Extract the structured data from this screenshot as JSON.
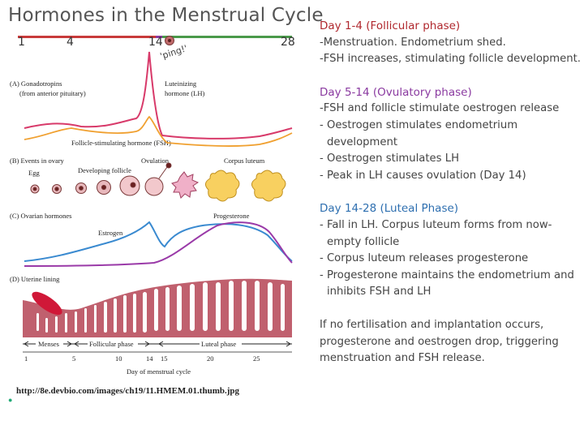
{
  "title": "Hormones in the Menstrual Cycle",
  "day_markers": [
    "1",
    "4",
    "14",
    "28"
  ],
  "ping_label": "'ping!'",
  "diagram": {
    "panel_a_label": "(A) Gonadotropins",
    "panel_a_sub": "(from anterior pituitary)",
    "lh_label_1": "Luteinizing",
    "lh_label_2": "hormone (LH)",
    "fsh_label": "Follicle-stimulating hormone (FSH)",
    "panel_b_label": "(B) Events in ovary",
    "egg_label": "Egg",
    "developing_follicle_label": "Developing follicle",
    "ovulation_label": "Ovulation",
    "corpus_luteum_label": "Corpus luteum",
    "panel_c_label": "(C) Ovarian hormones",
    "estrogen_label": "Estrogen",
    "progesterone_label": "Progesterone",
    "panel_d_label": "(D) Uterine lining",
    "menses_label": "Menses",
    "follicular_label": "Follicular phase",
    "luteal_label": "Luteal phase",
    "axis_ticks": [
      "1",
      "5",
      "10",
      "14",
      "15",
      "20",
      "25"
    ],
    "axis_title": "Day of menstrual cycle"
  },
  "source_url": "http://8e.devbio.com/images/ch19/11.HMEM.01.thumb.jpg",
  "colors": {
    "lh": "#d83a6a",
    "fsh": "#f0a030",
    "hormone": "#3a8ad0",
    "progesterone": "#9a3aa8",
    "lining": "#c0606e",
    "red_head": "#b0282e",
    "purple_head": "#8a3aa0",
    "blue_head": "#2e6fb0"
  },
  "sections": [
    {
      "heading": "Day 1-4 (Follicular phase)",
      "items": [
        "-Menstruation. Endometrium shed.",
        "-FSH increases, stimulating follicle development."
      ]
    },
    {
      "heading": "Day 5-14 (Ovulatory phase)",
      "items": [
        "-FSH and follicle stimulate oestrogen release",
        "- Oestrogen stimulates endometrium development",
        "- Oestrogen stimulates LH",
        "- Peak in LH causes ovulation (Day 14)"
      ]
    },
    {
      "heading": "Day 14-28 (Luteal Phase)",
      "items": [
        "- Fall in LH. Corpus luteum forms from now-empty follicle",
        "- Corpus luteum releases progesterone",
        "- Progesterone maintains the endometrium and inhibits FSH and LH"
      ]
    }
  ],
  "closing": "If no fertilisation and implantation occurs, progesterone and oestrogen drop, triggering menstruation and FSH release."
}
